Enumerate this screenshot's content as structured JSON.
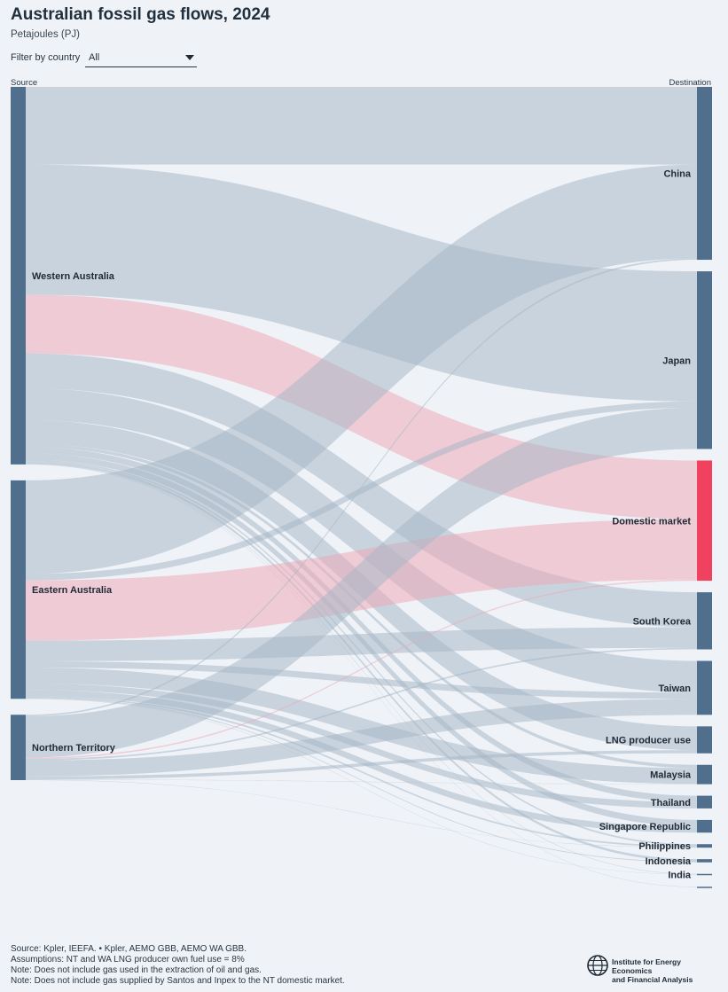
{
  "header": {
    "title": "Australian fossil gas flows, 2024",
    "subtitle": "Petajoules (PJ)"
  },
  "filter": {
    "label": "Filter by country",
    "value": "All"
  },
  "axis": {
    "source": "Source",
    "destination": "Destination"
  },
  "colors": {
    "node": "#4f6f8c",
    "domestic_node": "#f0425f",
    "link": "#a7b8c7",
    "domestic_link": "#eeaab8"
  },
  "notes": [
    "Source: Kpler, IEEFA. • Kpler, AEMO GBB, AEMO WA GBB.",
    "Assumptions: NT and WA LNG producer own fuel use = 8%",
    "Note: Does not include gas used in the extraction of oil and gas.",
    "Note: Does not include gas supplied by Santos and Inpex to the NT domestic market."
  ],
  "logo": {
    "line1": "Institute for Energy Economics",
    "line2": "and Financial Analysis"
  },
  "chart_data": {
    "type": "sankey",
    "title": "Australian fossil gas flows, 2024",
    "unit": "Petajoules (PJ)",
    "sources": [
      "Western Australia",
      "Eastern Australia",
      "Northern Territory"
    ],
    "destinations": [
      "China",
      "Japan",
      "Domestic market",
      "South Korea",
      "Taiwan",
      "LNG producer use",
      "Malaysia",
      "Thailand",
      "Singapore Republic",
      "Philippines",
      "Indonesia",
      "India",
      ""
    ],
    "links": [
      {
        "source": "Western Australia",
        "target": "China",
        "value": 490
      },
      {
        "source": "Western Australia",
        "target": "Japan",
        "value": 820
      },
      {
        "source": "Western Australia",
        "target": "Domestic market",
        "value": 370
      },
      {
        "source": "Western Australia",
        "target": "South Korea",
        "value": 220
      },
      {
        "source": "Western Australia",
        "target": "Taiwan",
        "value": 200
      },
      {
        "source": "Western Australia",
        "target": "LNG producer use",
        "value": 150
      },
      {
        "source": "Western Australia",
        "target": "Malaysia",
        "value": 20
      },
      {
        "source": "Western Australia",
        "target": "Thailand",
        "value": 40
      },
      {
        "source": "Western Australia",
        "target": "Singapore Republic",
        "value": 40
      },
      {
        "source": "Western Australia",
        "target": "Philippines",
        "value": 10
      },
      {
        "source": "Western Australia",
        "target": "Indonesia",
        "value": 15
      },
      {
        "source": "Western Australia",
        "target": "India",
        "value": 3
      },
      {
        "source": "Western Australia",
        "target": "",
        "value": 2
      },
      {
        "source": "Eastern Australia",
        "target": "China",
        "value": 590
      },
      {
        "source": "Eastern Australia",
        "target": "Japan",
        "value": 40
      },
      {
        "source": "Eastern Australia",
        "target": "Domestic market",
        "value": 380
      },
      {
        "source": "Eastern Australia",
        "target": "South Korea",
        "value": 130
      },
      {
        "source": "Eastern Australia",
        "target": "Taiwan",
        "value": 40
      },
      {
        "source": "Eastern Australia",
        "target": "Malaysia",
        "value": 100
      },
      {
        "source": "Eastern Australia",
        "target": "Thailand",
        "value": 40
      },
      {
        "source": "Eastern Australia",
        "target": "Singapore Republic",
        "value": 40
      },
      {
        "source": "Eastern Australia",
        "target": "Philippines",
        "value": 10
      },
      {
        "source": "Eastern Australia",
        "target": "Indonesia",
        "value": 5
      },
      {
        "source": "Eastern Australia",
        "target": "India",
        "value": 2
      },
      {
        "source": "Northern Territory",
        "target": "China",
        "value": 10
      },
      {
        "source": "Northern Territory",
        "target": "Japan",
        "value": 260
      },
      {
        "source": "Northern Territory",
        "target": "Domestic market",
        "value": 8
      },
      {
        "source": "Northern Territory",
        "target": "South Korea",
        "value": 10
      },
      {
        "source": "Northern Territory",
        "target": "Taiwan",
        "value": 100
      },
      {
        "source": "Northern Territory",
        "target": "LNG producer use",
        "value": 20
      },
      {
        "source": "Northern Territory",
        "target": "Malaysia",
        "value": 2
      },
      {
        "source": "Northern Territory",
        "target": "Philippines",
        "value": 2
      }
    ]
  }
}
